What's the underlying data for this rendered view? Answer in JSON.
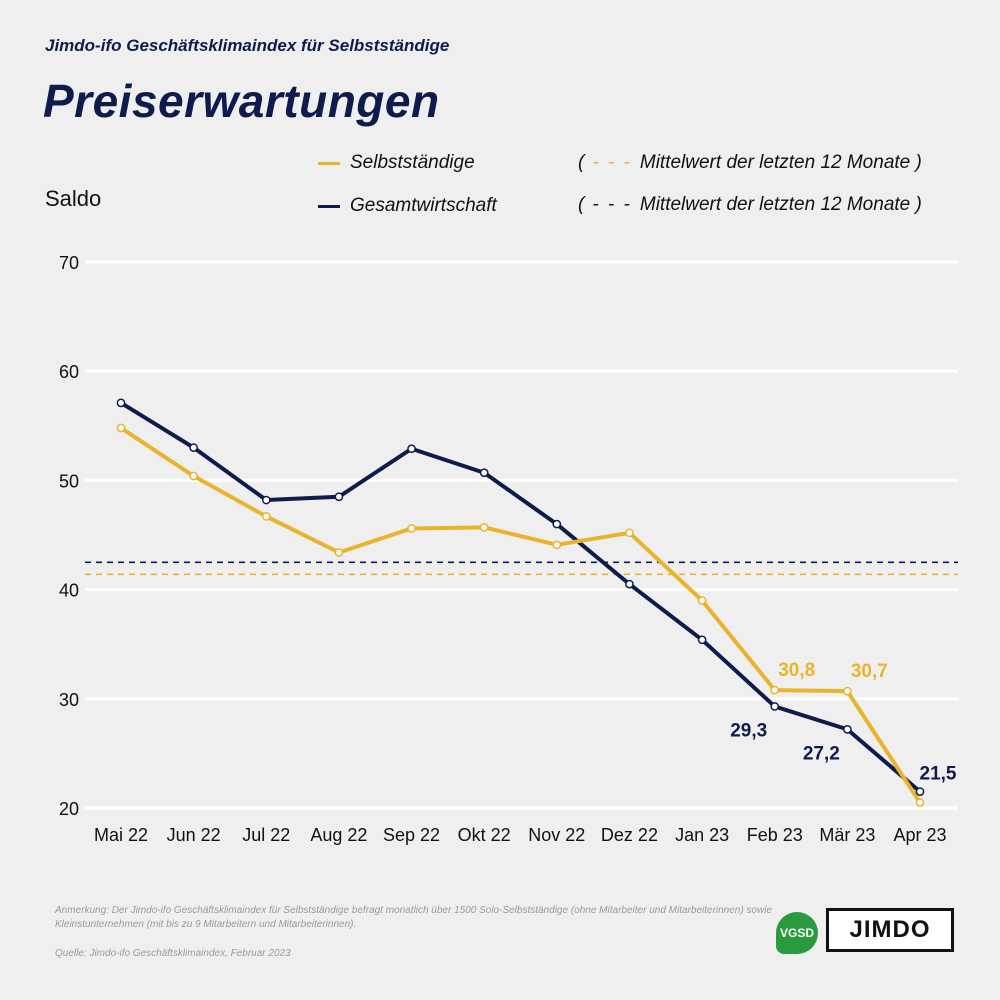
{
  "header": {
    "subtitle": "Jimdo-ifo Geschäftsklimaindex für Selbstständige",
    "title": "Preiserwartungen"
  },
  "legend": {
    "series1": "Selbstständige",
    "series2": "Gesamtwirtschaft",
    "mean1": "Mittelwert der letzten 12 Monate",
    "mean2": "Mittelwert der letzten 12 Monate",
    "open_paren": "(",
    "close_paren": ")",
    "dash": "- - -"
  },
  "colors": {
    "selbststaendige": "#e9b42b",
    "gesamtwirtschaft": "#0e1b4d",
    "grid": "#ffffff"
  },
  "chart_data": {
    "type": "line",
    "ylabel": "Saldo",
    "ylim": [
      20,
      70
    ],
    "yticks": [
      20,
      30,
      40,
      50,
      60,
      70
    ],
    "categories": [
      "Mai 22",
      "Jun 22",
      "Jul 22",
      "Aug 22",
      "Sep 22",
      "Okt 22",
      "Nov 22",
      "Dez 22",
      "Jan 23",
      "Feb 23",
      "Mär 23",
      "Apr 23"
    ],
    "series": [
      {
        "name": "Selbstständige",
        "values": [
          54.8,
          50.4,
          46.7,
          43.4,
          45.6,
          45.7,
          44.1,
          45.2,
          39.0,
          30.8,
          30.7,
          20.5
        ],
        "mean": 41.4,
        "labels": [
          null,
          null,
          null,
          null,
          null,
          null,
          null,
          null,
          null,
          "30,8",
          "30,7",
          null
        ]
      },
      {
        "name": "Gesamtwirtschaft",
        "values": [
          57.1,
          53.0,
          48.2,
          48.5,
          52.9,
          50.7,
          46.0,
          40.5,
          35.4,
          29.3,
          27.2,
          21.5
        ],
        "mean": 42.5,
        "labels": [
          null,
          null,
          null,
          null,
          null,
          null,
          null,
          null,
          null,
          "29,3",
          "27,2",
          "21,5"
        ]
      }
    ],
    "grid": true
  },
  "footer": {
    "note": "Anmerkung: Der Jimdo-ifo Geschäftsklimaindex für Selbstständige befragt monatlich über 1500 Solo-Selbstständige (ohne Mitarbeiter und Mitarbeiterinnen) sowie Kleinstunternehmen (mit bis zu 9 Mitarbeitern und Mitarbeiterinnen).",
    "source": "Quelle: Jimdo-ifo Geschäftsklimaindex, Februar 2023",
    "logo_vgsd": "VGSD",
    "logo_jimdo": "JIMDO"
  }
}
